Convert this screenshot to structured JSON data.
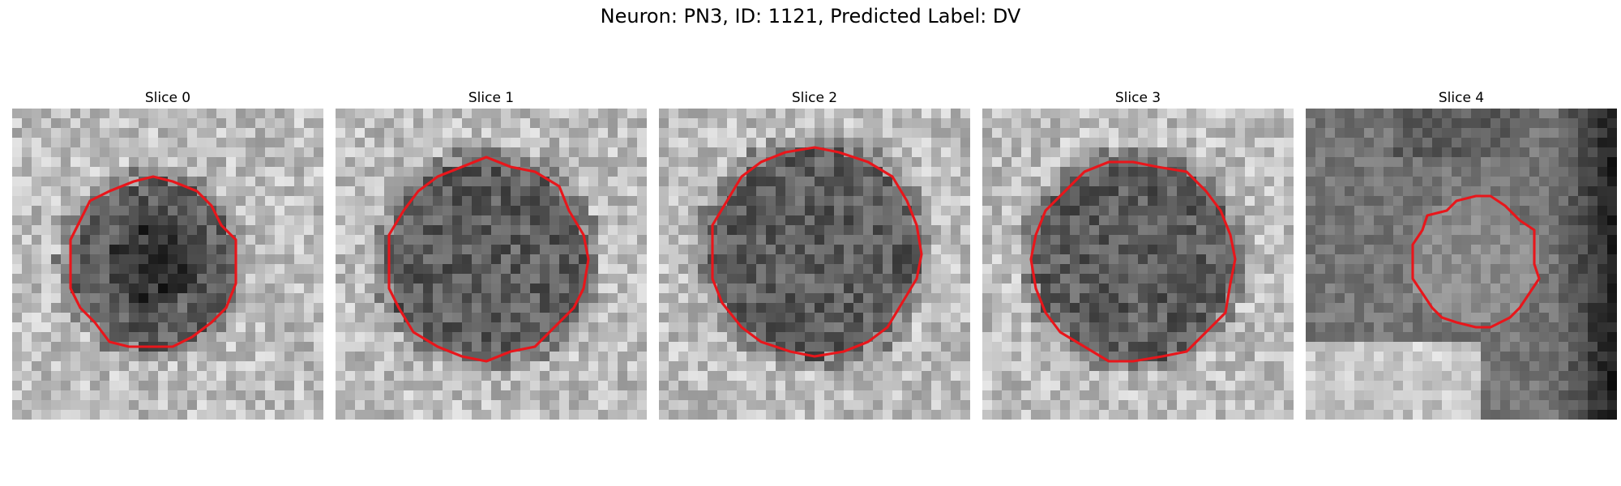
{
  "figure": {
    "title": "Neuron: PN3, ID: 1121, Predicted Label: DV"
  },
  "panels": [
    {
      "title": "Slice 0",
      "tone": "light",
      "seed": 11
    },
    {
      "title": "Slice 1",
      "tone": "light",
      "seed": 23
    },
    {
      "title": "Slice 2",
      "tone": "light",
      "seed": 37
    },
    {
      "title": "Slice 3",
      "tone": "light",
      "seed": 51
    },
    {
      "title": "Slice 4",
      "tone": "dark",
      "seed": 67
    }
  ],
  "colors": {
    "contour": "#e8161b"
  }
}
